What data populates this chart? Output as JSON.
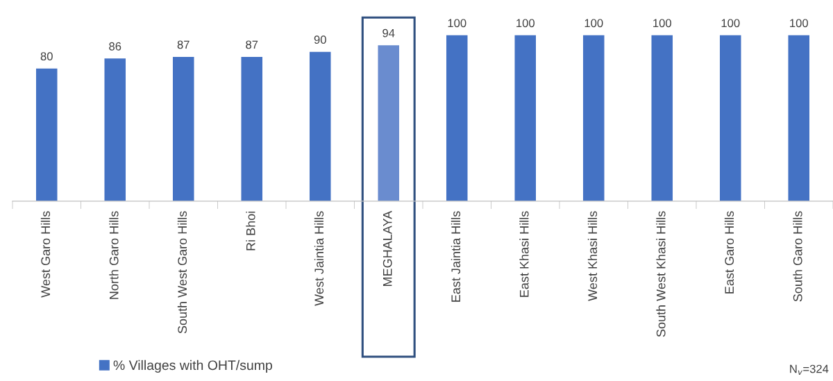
{
  "chart_data": {
    "type": "bar",
    "categories": [
      "West Garo Hills",
      "North Garo Hills",
      "South West Garo Hills",
      "Ri Bhoi",
      "West Jaintia Hills",
      "MEGHALAYA",
      "East Jaintia Hills",
      "East Khasi Hills",
      "West Khasi Hills",
      "South West Khasi Hills",
      "East Garo Hills",
      "South Garo Hills"
    ],
    "series": [
      {
        "name": "% Villages with OHT/sump",
        "color": "#4472c4",
        "values": [
          80,
          86,
          87,
          87,
          90,
          94,
          100,
          100,
          100,
          100,
          100,
          100
        ],
        "colors": [
          "#4472c4",
          "#4472c4",
          "#4472c4",
          "#4472c4",
          "#4472c4",
          "#6a8ccf",
          "#4472c4",
          "#4472c4",
          "#4472c4",
          "#4472c4",
          "#4472c4",
          "#4472c4"
        ]
      }
    ],
    "data_labels": true,
    "legend": "bottom left",
    "grid": false,
    "annotations": [
      "N$_{v}$=324"
    ]
  }
}
